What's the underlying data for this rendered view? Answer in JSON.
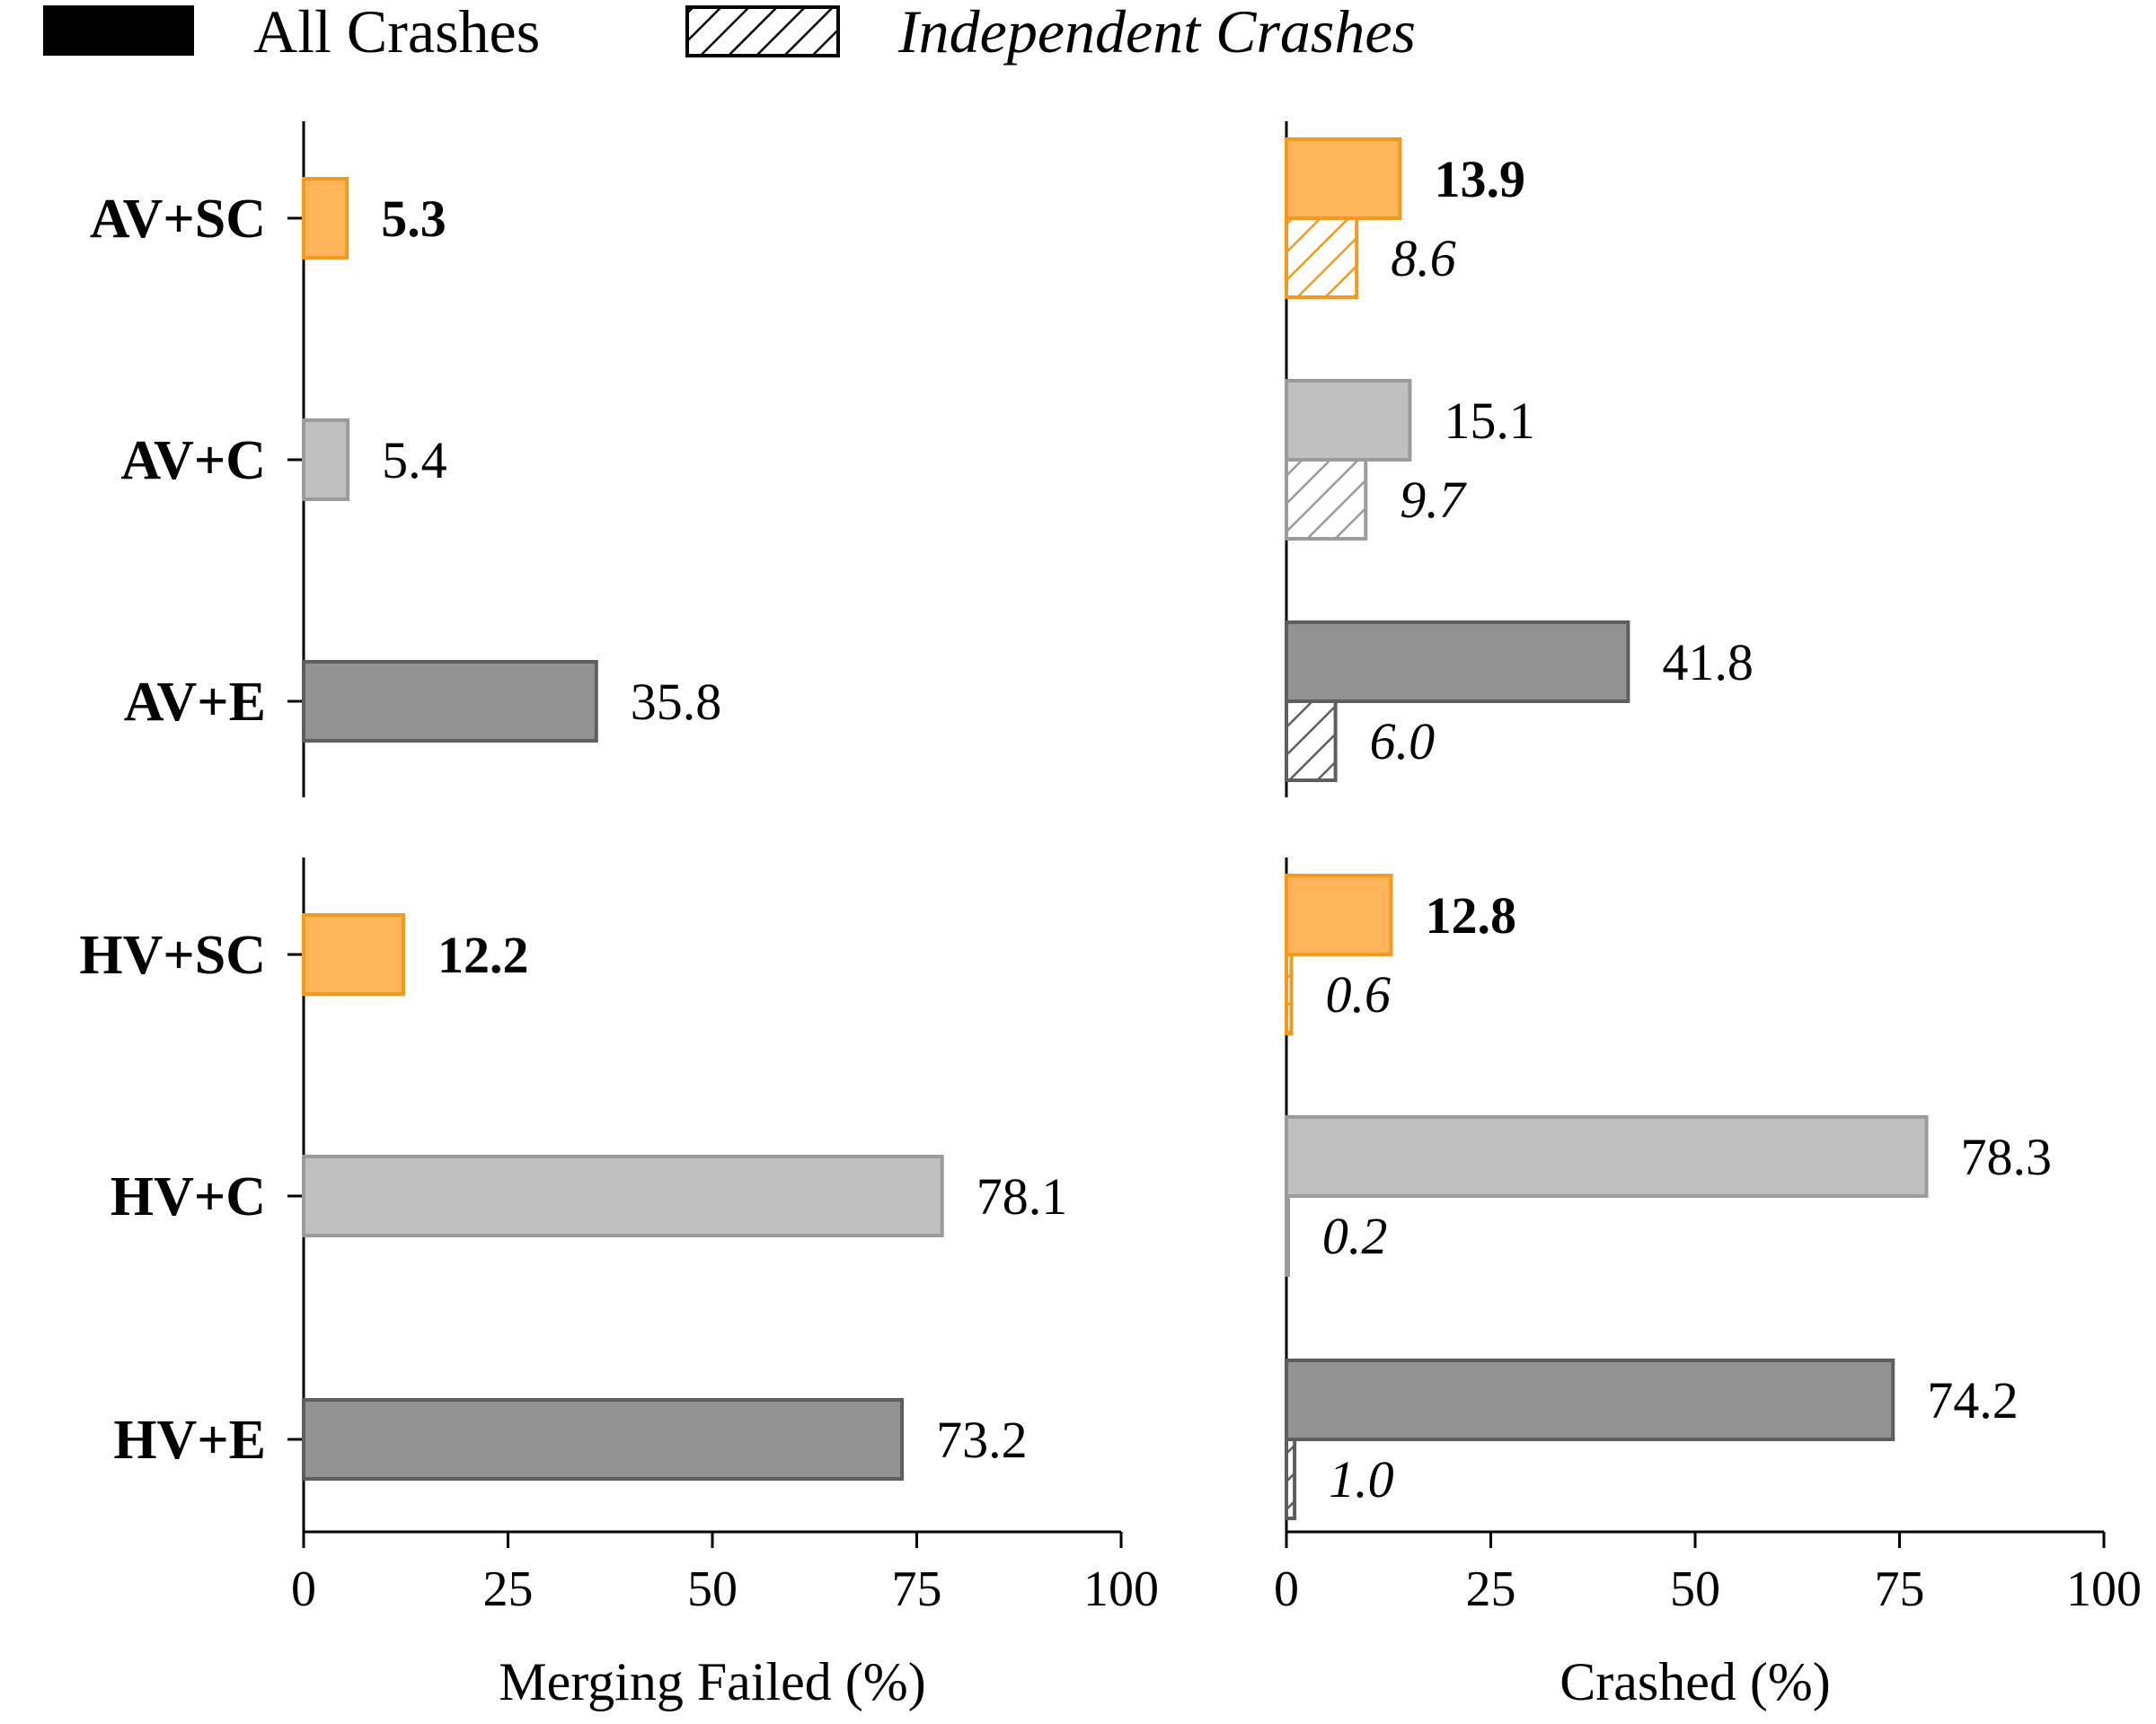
{
  "legend": {
    "all_label": "All Crashes",
    "independent_label": "Independent Crashes"
  },
  "colors": {
    "SC_fill": "#ffb45a",
    "SC_edge": "#f39a1e",
    "C_fill": "#bfbfbf",
    "C_edge": "#9b9b9b",
    "E_fill": "#929292",
    "E_edge": "#5e5e5e"
  },
  "chart_data": [
    {
      "type": "bar",
      "orientation": "horizontal",
      "panel": "top-left",
      "xlabel": "",
      "xlim": [
        0,
        100
      ],
      "categories": [
        "AV+SC",
        "AV+C",
        "AV+E"
      ],
      "series": [
        {
          "name": "Merging Failed",
          "values": [
            5.3,
            5.4,
            35.8
          ],
          "labels": [
            "5.3",
            "5.4",
            "35.8"
          ]
        }
      ]
    },
    {
      "type": "bar",
      "orientation": "horizontal",
      "panel": "top-right",
      "xlabel": "",
      "xlim": [
        0,
        100
      ],
      "categories": [
        "AV+SC",
        "AV+C",
        "AV+E"
      ],
      "series": [
        {
          "name": "All Crashes",
          "values": [
            13.9,
            15.1,
            41.8
          ],
          "labels": [
            "13.9",
            "15.1",
            "41.8"
          ]
        },
        {
          "name": "Independent Crashes",
          "values": [
            8.6,
            9.7,
            6.0
          ],
          "labels": [
            "8.6",
            "9.7",
            "6.0"
          ]
        }
      ]
    },
    {
      "type": "bar",
      "orientation": "horizontal",
      "panel": "bottom-left",
      "xlabel": "Merging Failed (%)",
      "xlim": [
        0,
        100
      ],
      "xticks": [
        "0",
        "25",
        "50",
        "75",
        "100"
      ],
      "categories": [
        "HV+SC",
        "HV+C",
        "HV+E"
      ],
      "series": [
        {
          "name": "Merging Failed",
          "values": [
            12.2,
            78.1,
            73.2
          ],
          "labels": [
            "12.2",
            "78.1",
            "73.2"
          ]
        }
      ]
    },
    {
      "type": "bar",
      "orientation": "horizontal",
      "panel": "bottom-right",
      "xlabel": "Crashed (%)",
      "xlim": [
        0,
        100
      ],
      "xticks": [
        "0",
        "25",
        "50",
        "75",
        "100"
      ],
      "categories": [
        "HV+SC",
        "HV+C",
        "HV+E"
      ],
      "series": [
        {
          "name": "All Crashes",
          "values": [
            12.8,
            78.3,
            74.2
          ],
          "labels": [
            "12.8",
            "78.3",
            "74.2"
          ]
        },
        {
          "name": "Independent Crashes",
          "values": [
            0.6,
            0.2,
            1.0
          ],
          "labels": [
            "0.6",
            "0.2",
            "1.0"
          ]
        }
      ]
    }
  ]
}
